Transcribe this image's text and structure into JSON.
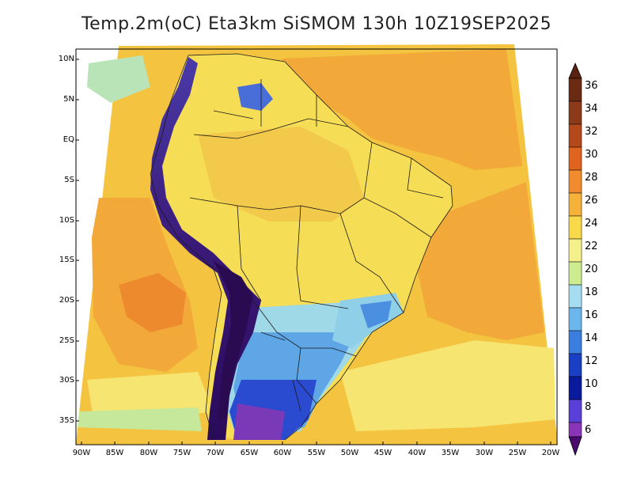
{
  "title": "Temp.2m(oC) Eta3km SiSMOM 130h 10Z19SEP2025",
  "map": {
    "variable": "2 m temperature",
    "units": "oC",
    "model": "Eta3km",
    "run_label": "SiSMOM",
    "forecast_hour": "130h",
    "valid_time": "10Z19SEP2025",
    "region": "South America",
    "lat_ticks": [
      "10N",
      "5N",
      "EQ",
      "5S",
      "10S",
      "15S",
      "20S",
      "25S",
      "30S",
      "35S"
    ],
    "lon_ticks": [
      "90W",
      "85W",
      "80W",
      "75W",
      "70W",
      "65W",
      "60W",
      "55W",
      "50W",
      "45W",
      "40W",
      "35W",
      "30W",
      "25W",
      "20W"
    ]
  },
  "colorbar": {
    "labels": [
      "36",
      "34",
      "32",
      "30",
      "28",
      "26",
      "24",
      "22",
      "20",
      "18",
      "16",
      "14",
      "12",
      "10",
      "8",
      "6"
    ],
    "colors": [
      "#6b2a12",
      "#8b3a1a",
      "#b4491c",
      "#e0641e",
      "#f08c2e",
      "#f5b23a",
      "#f7d94a",
      "#f5f08c",
      "#cdeb8f",
      "#a6dcef",
      "#6cb6ee",
      "#3a7fe0",
      "#1a3fc4",
      "#0a1a9c",
      "#5a3fd8",
      "#8a34b8",
      "#6a1a8e",
      "#4a0a6e"
    ]
  }
}
